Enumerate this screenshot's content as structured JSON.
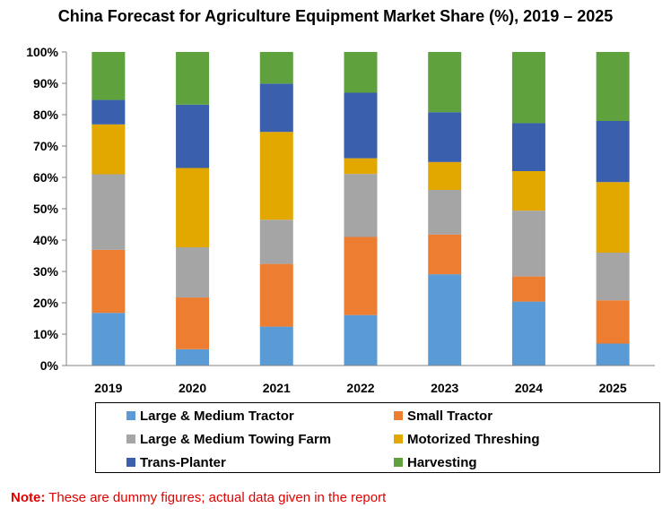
{
  "chart_data": {
    "type": "bar",
    "stacked": true,
    "title": "China Forecast for Agriculture Equipment Market Share (%), 2019 – 2025",
    "xlabel": "",
    "ylabel": "",
    "ylim": [
      0,
      100
    ],
    "y_ticks": [
      "0%",
      "10%",
      "20%",
      "30%",
      "40%",
      "50%",
      "60%",
      "70%",
      "80%",
      "90%",
      "100%"
    ],
    "categories": [
      "2019",
      "2020",
      "2021",
      "2022",
      "2023",
      "2024",
      "2025"
    ],
    "series": [
      {
        "name": "Large & Medium Tractor",
        "color": "#5b9bd5",
        "values": [
          16.8,
          5.2,
          12.4,
          16.1,
          29.1,
          20.4,
          7.0
        ]
      },
      {
        "name": "Small Tractor",
        "color": "#ed7d31",
        "values": [
          20.1,
          16.5,
          20.0,
          24.9,
          12.7,
          8.0,
          13.8
        ]
      },
      {
        "name": "Large & Medium Towing Farm",
        "color": "#a5a5a5",
        "values": [
          24.1,
          16.0,
          14.1,
          20.1,
          14.2,
          21.0,
          15.2
        ]
      },
      {
        "name": "Motorized Threshing",
        "color": "#e3a800",
        "values": [
          15.9,
          25.3,
          28.0,
          5.0,
          8.9,
          12.6,
          22.5
        ]
      },
      {
        "name": "Trans-Planter",
        "color": "#3a5fad",
        "values": [
          7.8,
          20.2,
          15.4,
          20.9,
          15.9,
          15.3,
          19.5
        ]
      },
      {
        "name": "Harvesting",
        "color": "#5ea13d",
        "values": [
          15.3,
          16.8,
          10.1,
          13.0,
          19.2,
          22.7,
          22.0
        ]
      }
    ],
    "grid": false,
    "legend_position": "bottom"
  },
  "legend_order": [
    0,
    1,
    2,
    3,
    4,
    5
  ],
  "note": {
    "prefix": "Note:",
    "text": " These are dummy figures; actual data given in the report",
    "color": "#e00000"
  }
}
